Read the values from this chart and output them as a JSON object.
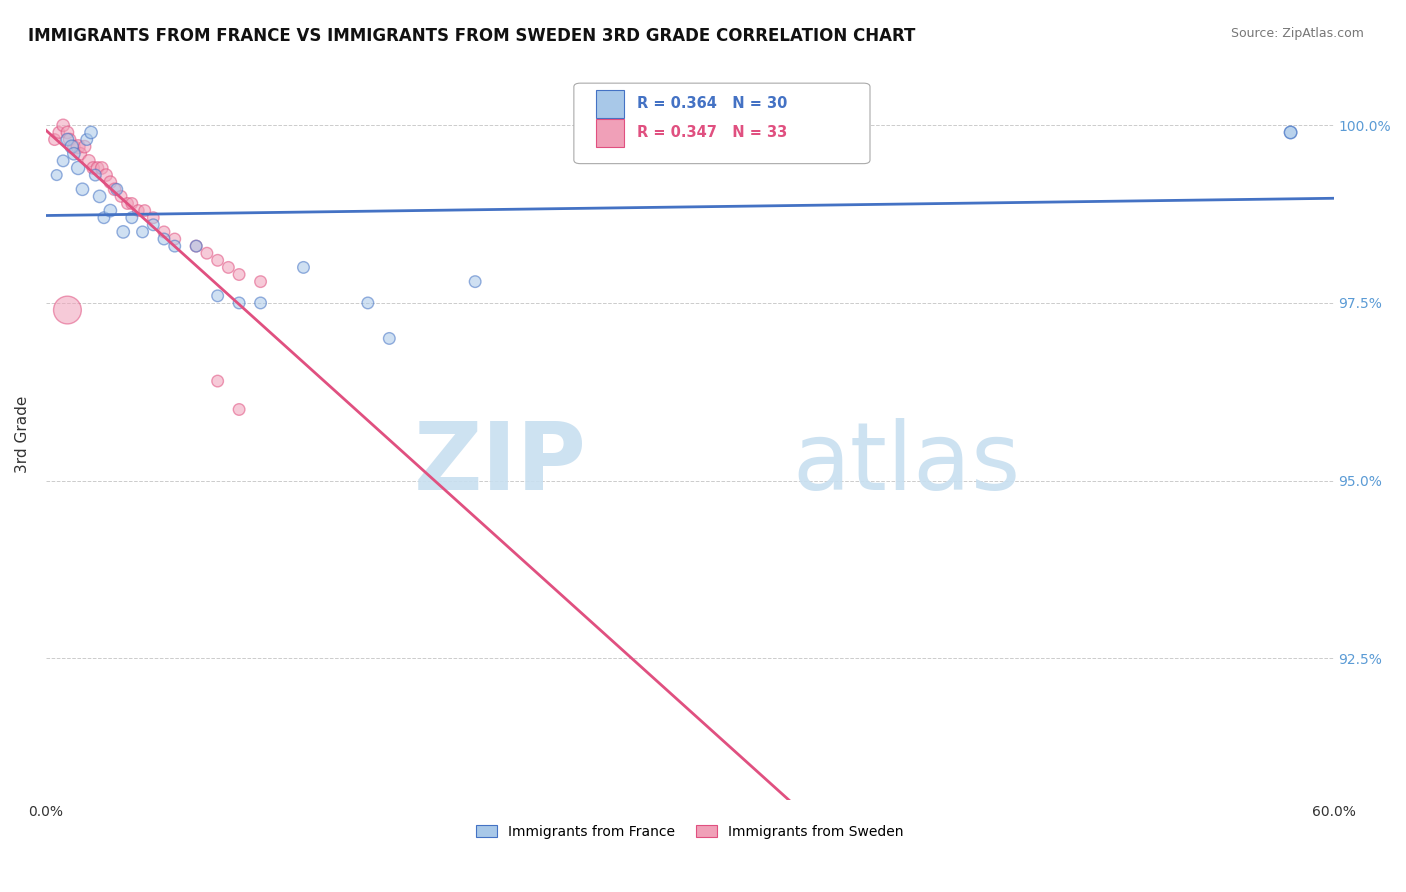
{
  "title": "IMMIGRANTS FROM FRANCE VS IMMIGRANTS FROM SWEDEN 3RD GRADE CORRELATION CHART",
  "source": "Source: ZipAtlas.com",
  "ylabel": "3rd Grade",
  "legend_label1": "Immigrants from France",
  "legend_label2": "Immigrants from Sweden",
  "R1": 0.364,
  "N1": 30,
  "R2": 0.347,
  "N2": 33,
  "color_france": "#a8c8e8",
  "color_sweden": "#f0a0b8",
  "color_france_line": "#4472c4",
  "color_sweden_line": "#e05080",
  "xlim": [
    0.0,
    0.6
  ],
  "ylim": [
    0.905,
    1.008
  ],
  "yticks": [
    0.925,
    0.95,
    0.975,
    1.0
  ],
  "ytick_labels": [
    "92.5%",
    "95.0%",
    "97.5%",
    "100.0%"
  ],
  "xticks": [
    0.0,
    0.1,
    0.2,
    0.3,
    0.4,
    0.5,
    0.6
  ],
  "xtick_labels": [
    "0.0%",
    "",
    "",
    "",
    "",
    "",
    "60.0%"
  ],
  "france_x": [
    0.005,
    0.008,
    0.01,
    0.012,
    0.013,
    0.015,
    0.017,
    0.019,
    0.021,
    0.023,
    0.025,
    0.027,
    0.03,
    0.033,
    0.036,
    0.04,
    0.045,
    0.05,
    0.055,
    0.06,
    0.07,
    0.08,
    0.09,
    0.1,
    0.12,
    0.15,
    0.16,
    0.2,
    0.58,
    0.58
  ],
  "france_y": [
    0.993,
    0.995,
    0.998,
    0.997,
    0.996,
    0.994,
    0.991,
    0.998,
    0.999,
    0.993,
    0.99,
    0.987,
    0.988,
    0.991,
    0.985,
    0.987,
    0.985,
    0.986,
    0.984,
    0.983,
    0.983,
    0.976,
    0.975,
    0.975,
    0.98,
    0.975,
    0.97,
    0.978,
    0.999,
    0.999
  ],
  "france_sizes": [
    60,
    70,
    80,
    90,
    80,
    90,
    80,
    70,
    80,
    70,
    80,
    70,
    80,
    70,
    80,
    70,
    70,
    70,
    70,
    70,
    70,
    70,
    70,
    70,
    70,
    70,
    70,
    70,
    80,
    80
  ],
  "sweden_x": [
    0.004,
    0.006,
    0.008,
    0.01,
    0.011,
    0.013,
    0.015,
    0.016,
    0.018,
    0.02,
    0.022,
    0.024,
    0.026,
    0.028,
    0.03,
    0.032,
    0.035,
    0.038,
    0.04,
    0.043,
    0.046,
    0.05,
    0.055,
    0.06,
    0.07,
    0.075,
    0.08,
    0.085,
    0.09,
    0.1,
    0.08,
    0.09,
    0.01
  ],
  "sweden_y": [
    0.998,
    0.999,
    1.0,
    0.999,
    0.998,
    0.997,
    0.997,
    0.996,
    0.997,
    0.995,
    0.994,
    0.994,
    0.994,
    0.993,
    0.992,
    0.991,
    0.99,
    0.989,
    0.989,
    0.988,
    0.988,
    0.987,
    0.985,
    0.984,
    0.983,
    0.982,
    0.981,
    0.98,
    0.979,
    0.978,
    0.964,
    0.96,
    0.974
  ],
  "sweden_sizes": [
    70,
    70,
    80,
    80,
    80,
    80,
    100,
    80,
    80,
    80,
    80,
    80,
    80,
    80,
    80,
    80,
    70,
    70,
    70,
    70,
    70,
    70,
    70,
    70,
    70,
    70,
    70,
    70,
    70,
    70,
    70,
    70,
    400
  ],
  "background_color": "#ffffff",
  "grid_color": "#cccccc",
  "title_fontsize": 12,
  "axis_label_fontsize": 11,
  "tick_fontsize": 10,
  "watermark_zip": "ZIP",
  "watermark_atlas": "atlas",
  "watermark_color_zip": "#c8dff0",
  "watermark_color_atlas": "#c8dff0",
  "source_fontsize": 9,
  "right_tick_color": "#5b9bd5"
}
